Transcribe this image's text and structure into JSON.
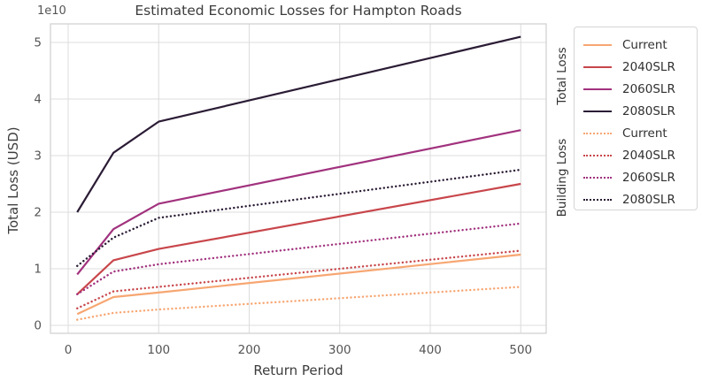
{
  "chart_data": {
    "type": "line",
    "title": "Estimated Economic Losses for Hampton Roads",
    "xlabel": "Return Period",
    "ylabel": "Total Loss (USD)",
    "y_offset_label": "1e10",
    "grid": true,
    "legend_position": "outside-right",
    "x": [
      10,
      50,
      100,
      500
    ],
    "x_ticks": [
      0,
      100,
      200,
      300,
      400,
      500
    ],
    "y_ticks": [
      0,
      1,
      2,
      3,
      4,
      5
    ],
    "xlim": [
      -20,
      528
    ],
    "ylim_1e10": [
      -0.15,
      5.33
    ],
    "y_units_note": "values are in units of 1e10 USD",
    "legend_groups": [
      {
        "label": "Total Loss",
        "style": "solid"
      },
      {
        "label": "Building Loss",
        "style": "dotted"
      }
    ],
    "series": [
      {
        "group": "Total Loss",
        "name": "Current",
        "style": "solid",
        "color": "#f7a672",
        "values": [
          0.2,
          0.5,
          0.58,
          1.25
        ]
      },
      {
        "group": "Total Loss",
        "name": "2040SLR",
        "style": "solid",
        "color": "#c8464b",
        "values": [
          0.55,
          1.15,
          1.35,
          2.5
        ]
      },
      {
        "group": "Total Loss",
        "name": "2060SLR",
        "style": "solid",
        "color": "#a1327e",
        "values": [
          0.9,
          1.7,
          2.15,
          3.45
        ]
      },
      {
        "group": "Total Loss",
        "name": "2080SLR",
        "style": "solid",
        "color": "#2b1c35",
        "values": [
          2.0,
          3.05,
          3.6,
          5.1
        ]
      },
      {
        "group": "Building Loss",
        "name": "Current",
        "style": "dotted",
        "color": "#f7a672",
        "values": [
          0.1,
          0.22,
          0.28,
          0.68
        ]
      },
      {
        "group": "Building Loss",
        "name": "2040SLR",
        "style": "dotted",
        "color": "#c8464b",
        "values": [
          0.3,
          0.6,
          0.68,
          1.32
        ]
      },
      {
        "group": "Building Loss",
        "name": "2060SLR",
        "style": "dotted",
        "color": "#a1327e",
        "values": [
          0.55,
          0.95,
          1.08,
          1.8
        ]
      },
      {
        "group": "Building Loss",
        "name": "2080SLR",
        "style": "dotted",
        "color": "#2b1c35",
        "values": [
          1.05,
          1.55,
          1.9,
          2.75
        ]
      }
    ],
    "grid_color": "#dcdcdc",
    "spine_color": "#cfcfcf",
    "tick_label_color": "#555555"
  }
}
